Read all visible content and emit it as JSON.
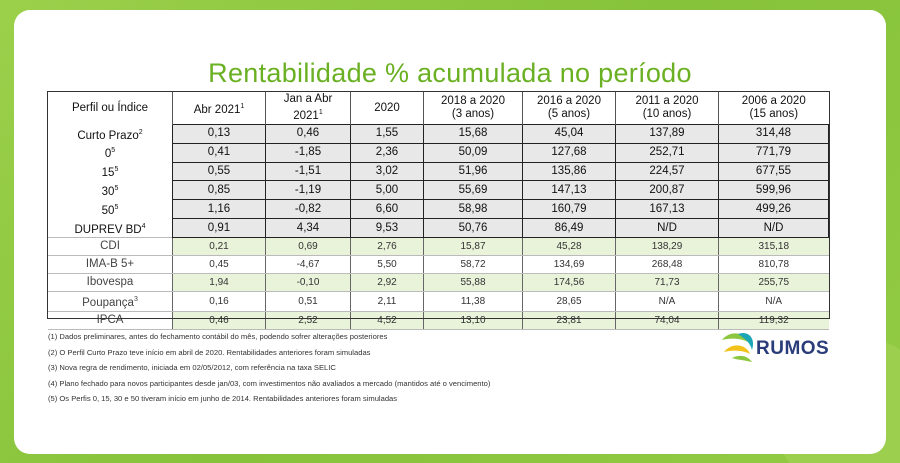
{
  "title": "Rentabilidade % acumulada no período",
  "table": {
    "headers": [
      {
        "main": "Perfil ou Índice",
        "sup": ""
      },
      {
        "main": "Abr 2021",
        "sup": "1"
      },
      {
        "main": "Jan a Abr 2021",
        "sup": "1"
      },
      {
        "main": "2020",
        "sup": ""
      },
      {
        "main": "2018 a 2020",
        "sub": "(3 anos)"
      },
      {
        "main": "2016 a 2020",
        "sub": "(5 anos)"
      },
      {
        "main": "2011 a 2020",
        "sub": "(10 anos)"
      },
      {
        "main": "2006 a 2020",
        "sub": "(15 anos)"
      }
    ],
    "profiles": [
      {
        "label": "Curto Prazo",
        "sup": "2",
        "values": [
          "0,13",
          "0,46",
          "1,55",
          "15,68",
          "45,04",
          "137,89",
          "314,48"
        ]
      },
      {
        "label": "0",
        "sup": "5",
        "values": [
          "0,41",
          "-1,85",
          "2,36",
          "50,09",
          "127,68",
          "252,71",
          "771,79"
        ]
      },
      {
        "label": "15",
        "sup": "5",
        "values": [
          "0,55",
          "-1,51",
          "3,02",
          "51,96",
          "135,86",
          "224,57",
          "677,55"
        ]
      },
      {
        "label": "30",
        "sup": "5",
        "values": [
          "0,85",
          "-1,19",
          "5,00",
          "55,69",
          "147,13",
          "200,87",
          "599,96"
        ]
      },
      {
        "label": "50",
        "sup": "5",
        "values": [
          "1,16",
          "-0,82",
          "6,60",
          "58,98",
          "160,79",
          "167,13",
          "499,26"
        ]
      },
      {
        "label": "DUPREV BD",
        "sup": "4",
        "values": [
          "0,91",
          "4,34",
          "9,53",
          "50,76",
          "86,49",
          "N/D",
          "N/D"
        ]
      }
    ],
    "indices": [
      {
        "label": "CDI",
        "sup": "",
        "values": [
          "0,21",
          "0,69",
          "2,76",
          "15,87",
          "45,28",
          "138,29",
          "315,18"
        ]
      },
      {
        "label": "IMA-B 5+",
        "sup": "",
        "values": [
          "0,45",
          "-4,67",
          "5,50",
          "58,72",
          "134,69",
          "268,48",
          "810,78"
        ]
      },
      {
        "label": "Ibovespa",
        "sup": "",
        "values": [
          "1,94",
          "-0,10",
          "2,92",
          "55,88",
          "174,56",
          "71,73",
          "255,75"
        ]
      },
      {
        "label": "Poupança",
        "sup": "3",
        "values": [
          "0,16",
          "0,51",
          "2,11",
          "11,38",
          "28,65",
          "N/A",
          "N/A"
        ]
      },
      {
        "label": "IPCA",
        "sup": "",
        "values": [
          "0,46",
          "2,52",
          "4,52",
          "13,10",
          "23,81",
          "74,04",
          "119,32"
        ]
      }
    ]
  },
  "notes": [
    "(1) Dados preliminares, antes do fechamento contábil do mês, podendo sofrer alterações posteriores",
    "(2) O Perfil Curto Prazo teve início em abril de 2020. Rentabilidades anteriores foram simuladas",
    "(3) Nova regra de rendimento, iniciada em 02/05/2012, com referência na taxa SELIC",
    "(4) Plano fechado para novos participantes desde jan/03, com investimentos não avaliados a mercado (mantidos até o vencimento)",
    "(5) Os Perfis 0, 15, 30 e 50 tiveram início em junho de 2014. Rentabilidades anteriores foram simuladas"
  ],
  "logo": {
    "text": "RUMOS",
    "colors": {
      "blue": "#2a3c7a",
      "green": "#8cc63f",
      "yellow": "#f2c21b",
      "teal": "#1aa6b7"
    }
  }
}
